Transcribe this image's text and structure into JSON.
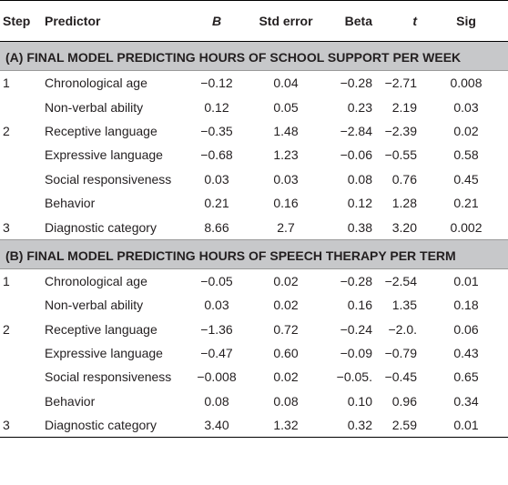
{
  "header": {
    "step": "Step",
    "predictor": "Predictor",
    "b": "B",
    "std_error": "Std error",
    "beta": "Beta",
    "t": "t",
    "sig": "Sig"
  },
  "sections": [
    {
      "title": "(A) FINAL MODEL PREDICTING HOURS OF SCHOOL SUPPORT PER WEEK",
      "rows": [
        {
          "step": "1",
          "predictor": "Chronological age",
          "b": "−0.12",
          "se": "0.04",
          "beta": "−0.28",
          "t": "−2.71",
          "sig": "0.008"
        },
        {
          "step": "",
          "predictor": "Non-verbal ability",
          "b": "0.12",
          "se": "0.05",
          "beta": "0.23",
          "t": "2.19",
          "sig": "0.03"
        },
        {
          "step": "2",
          "predictor": "Receptive language",
          "b": "−0.35",
          "se": "1.48",
          "beta": "−2.84",
          "t": "−2.39",
          "sig": "0.02"
        },
        {
          "step": "",
          "predictor": "Expressive language",
          "b": "−0.68",
          "se": "1.23",
          "beta": "−0.06",
          "t": "−0.55",
          "sig": "0.58"
        },
        {
          "step": "",
          "predictor": "Social responsiveness",
          "b": "0.03",
          "se": "0.03",
          "beta": "0.08",
          "t": "0.76",
          "sig": "0.45"
        },
        {
          "step": "",
          "predictor": "Behavior",
          "b": "0.21",
          "se": "0.16",
          "beta": "0.12",
          "t": "1.28",
          "sig": "0.21"
        },
        {
          "step": "3",
          "predictor": "Diagnostic category",
          "b": "8.66",
          "se": "2.7",
          "beta": "0.38",
          "t": "3.20",
          "sig": "0.002"
        }
      ]
    },
    {
      "title": "(B) FINAL MODEL PREDICTING HOURS OF SPEECH THERAPY PER TERM",
      "rows": [
        {
          "step": "1",
          "predictor": "Chronological age",
          "b": "−0.05",
          "se": "0.02",
          "beta": "−0.28",
          "t": "−2.54",
          "sig": "0.01"
        },
        {
          "step": "",
          "predictor": "Non-verbal ability",
          "b": "0.03",
          "se": "0.02",
          "beta": "0.16",
          "t": "1.35",
          "sig": "0.18"
        },
        {
          "step": "2",
          "predictor": "Receptive language",
          "b": "−1.36",
          "se": "0.72",
          "beta": "−0.24",
          "t": "−2.0.",
          "sig": "0.06"
        },
        {
          "step": "",
          "predictor": "Expressive language",
          "b": "−0.47",
          "se": "0.60",
          "beta": "−0.09",
          "t": "−0.79",
          "sig": "0.43"
        },
        {
          "step": "",
          "predictor": "Social responsiveness",
          "b": "−0.008",
          "se": "0.02",
          "beta": "−0.05.",
          "t": "−0.45",
          "sig": "0.65"
        },
        {
          "step": "",
          "predictor": "Behavior",
          "b": "0.08",
          "se": "0.08",
          "beta": "0.10",
          "t": "0.96",
          "sig": "0.34"
        },
        {
          "step": "3",
          "predictor": "Diagnostic category",
          "b": "3.40",
          "se": "1.32",
          "beta": "0.32",
          "t": "2.59",
          "sig": "0.01"
        }
      ]
    }
  ]
}
